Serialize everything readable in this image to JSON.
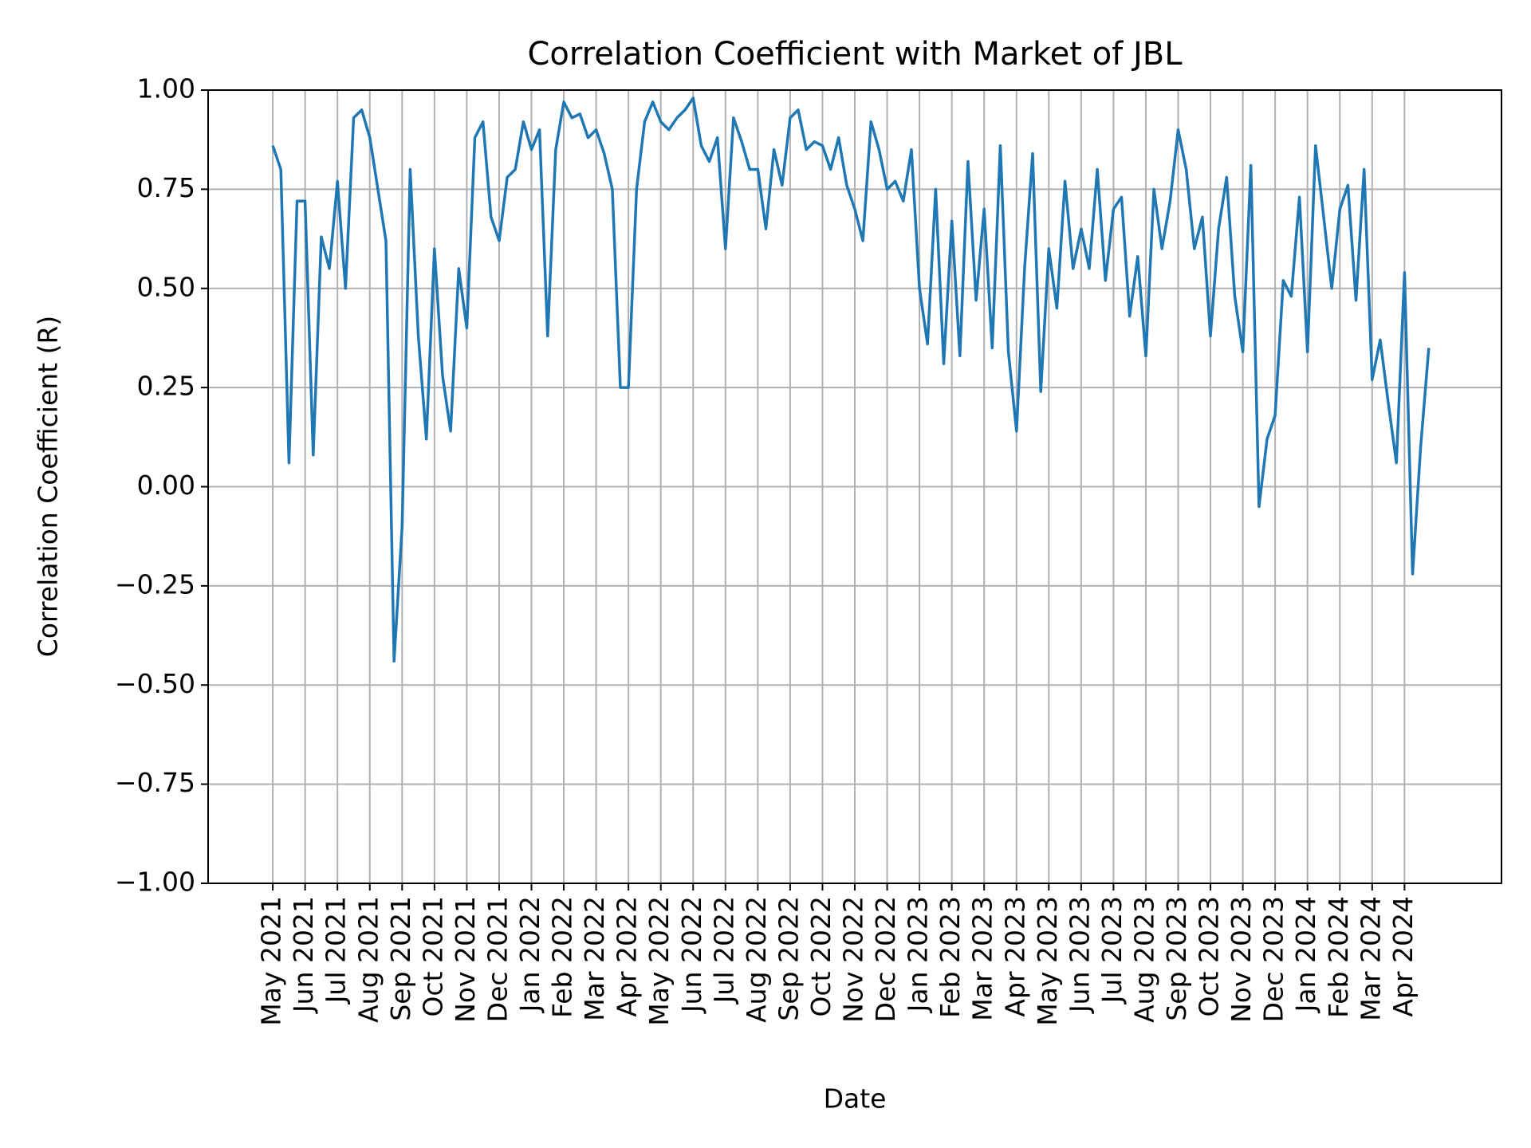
{
  "chart_data": {
    "type": "line",
    "title": "Correlation Coefficient with Market of JBL",
    "xlabel": "Date",
    "ylabel": "Correlation Coefficient (R)",
    "x": [
      "2021-05",
      "2021-05",
      "2021-05",
      "2021-05",
      "2021-06",
      "2021-06",
      "2021-06",
      "2021-06",
      "2021-07",
      "2021-07",
      "2021-07",
      "2021-07",
      "2021-08",
      "2021-08",
      "2021-08",
      "2021-08",
      "2021-09",
      "2021-09",
      "2021-09",
      "2021-09",
      "2021-10",
      "2021-10",
      "2021-10",
      "2021-10",
      "2021-11",
      "2021-11",
      "2021-11",
      "2021-11",
      "2021-12",
      "2021-12",
      "2021-12",
      "2021-12",
      "2022-01",
      "2022-01",
      "2022-01",
      "2022-01",
      "2022-02",
      "2022-02",
      "2022-02",
      "2022-02",
      "2022-03",
      "2022-03",
      "2022-03",
      "2022-03",
      "2022-04",
      "2022-04",
      "2022-04",
      "2022-04",
      "2022-05",
      "2022-05",
      "2022-05",
      "2022-05",
      "2022-06",
      "2022-06",
      "2022-06",
      "2022-06",
      "2022-07",
      "2022-07",
      "2022-07",
      "2022-07",
      "2022-08",
      "2022-08",
      "2022-08",
      "2022-08",
      "2022-09",
      "2022-09",
      "2022-09",
      "2022-09",
      "2022-10",
      "2022-10",
      "2022-10",
      "2022-10",
      "2022-11",
      "2022-11",
      "2022-11",
      "2022-11",
      "2022-12",
      "2022-12",
      "2022-12",
      "2022-12",
      "2023-01",
      "2023-01",
      "2023-01",
      "2023-01",
      "2023-02",
      "2023-02",
      "2023-02",
      "2023-02",
      "2023-03",
      "2023-03",
      "2023-03",
      "2023-03",
      "2023-04",
      "2023-04",
      "2023-04",
      "2023-04",
      "2023-05",
      "2023-05",
      "2023-05",
      "2023-05",
      "2023-06",
      "2023-06",
      "2023-06",
      "2023-06",
      "2023-07",
      "2023-07",
      "2023-07",
      "2023-07",
      "2023-08",
      "2023-08",
      "2023-08",
      "2023-08",
      "2023-09",
      "2023-09",
      "2023-09",
      "2023-09",
      "2023-10",
      "2023-10",
      "2023-10",
      "2023-10",
      "2023-11",
      "2023-11",
      "2023-11",
      "2023-11",
      "2023-12",
      "2023-12",
      "2023-12",
      "2023-12",
      "2024-01",
      "2024-01",
      "2024-01",
      "2024-01",
      "2024-02",
      "2024-02",
      "2024-02",
      "2024-02",
      "2024-03",
      "2024-03",
      "2024-03",
      "2024-03",
      "2024-04",
      "2024-04",
      "2024-04",
      "2024-04"
    ],
    "series": [
      {
        "color": "#1f77b4",
        "values": [
          0.86,
          0.8,
          0.06,
          0.72,
          0.72,
          0.08,
          0.63,
          0.55,
          0.77,
          0.5,
          0.93,
          0.95,
          0.88,
          0.75,
          0.62,
          -0.44,
          -0.1,
          0.8,
          0.38,
          0.12,
          0.6,
          0.28,
          0.14,
          0.55,
          0.4,
          0.88,
          0.92,
          0.68,
          0.62,
          0.78,
          0.8,
          0.92,
          0.85,
          0.9,
          0.38,
          0.85,
          0.97,
          0.93,
          0.94,
          0.88,
          0.9,
          0.84,
          0.75,
          0.25,
          0.25,
          0.75,
          0.92,
          0.97,
          0.92,
          0.9,
          0.93,
          0.95,
          0.98,
          0.86,
          0.82,
          0.88,
          0.6,
          0.93,
          0.87,
          0.8,
          0.8,
          0.65,
          0.85,
          0.76,
          0.93,
          0.95,
          0.85,
          0.87,
          0.86,
          0.8,
          0.88,
          0.76,
          0.7,
          0.62,
          0.92,
          0.85,
          0.75,
          0.77,
          0.72,
          0.85,
          0.5,
          0.36,
          0.75,
          0.31,
          0.67,
          0.33,
          0.82,
          0.47,
          0.7,
          0.35,
          0.86,
          0.34,
          0.14,
          0.55,
          0.84,
          0.24,
          0.6,
          0.45,
          0.77,
          0.55,
          0.65,
          0.55,
          0.8,
          0.52,
          0.7,
          0.73,
          0.43,
          0.58,
          0.33,
          0.75,
          0.6,
          0.72,
          0.9,
          0.8,
          0.6,
          0.68,
          0.38,
          0.65,
          0.78,
          0.48,
          0.34,
          0.81,
          -0.05,
          0.12,
          0.18,
          0.52,
          0.48,
          0.73,
          0.34,
          0.86,
          0.68,
          0.5,
          0.7,
          0.76,
          0.47,
          0.8,
          0.27,
          0.37,
          0.21,
          0.06,
          0.54,
          -0.22,
          0.1,
          0.35
        ]
      }
    ],
    "xlim": [
      "2021-03",
      "2024-07"
    ],
    "xticks": [
      {
        "value": "2021-05",
        "label": "May 2021"
      },
      {
        "value": "2021-06",
        "label": "Jun 2021"
      },
      {
        "value": "2021-07",
        "label": "Jul 2021"
      },
      {
        "value": "2021-08",
        "label": "Aug 2021"
      },
      {
        "value": "2021-09",
        "label": "Sep 2021"
      },
      {
        "value": "2021-10",
        "label": "Oct 2021"
      },
      {
        "value": "2021-11",
        "label": "Nov 2021"
      },
      {
        "value": "2021-12",
        "label": "Dec 2021"
      },
      {
        "value": "2022-01",
        "label": "Jan 2022"
      },
      {
        "value": "2022-02",
        "label": "Feb 2022"
      },
      {
        "value": "2022-03",
        "label": "Mar 2022"
      },
      {
        "value": "2022-04",
        "label": "Apr 2022"
      },
      {
        "value": "2022-05",
        "label": "May 2022"
      },
      {
        "value": "2022-06",
        "label": "Jun 2022"
      },
      {
        "value": "2022-07",
        "label": "Jul 2022"
      },
      {
        "value": "2022-08",
        "label": "Aug 2022"
      },
      {
        "value": "2022-09",
        "label": "Sep 2022"
      },
      {
        "value": "2022-10",
        "label": "Oct 2022"
      },
      {
        "value": "2022-11",
        "label": "Nov 2022"
      },
      {
        "value": "2022-12",
        "label": "Dec 2022"
      },
      {
        "value": "2023-01",
        "label": "Jan 2023"
      },
      {
        "value": "2023-02",
        "label": "Feb 2023"
      },
      {
        "value": "2023-03",
        "label": "Mar 2023"
      },
      {
        "value": "2023-04",
        "label": "Apr 2023"
      },
      {
        "value": "2023-05",
        "label": "May 2023"
      },
      {
        "value": "2023-06",
        "label": "Jun 2023"
      },
      {
        "value": "2023-07",
        "label": "Jul 2023"
      },
      {
        "value": "2023-08",
        "label": "Aug 2023"
      },
      {
        "value": "2023-09",
        "label": "Sep 2023"
      },
      {
        "value": "2023-10",
        "label": "Oct 2023"
      },
      {
        "value": "2023-11",
        "label": "Nov 2023"
      },
      {
        "value": "2023-12",
        "label": "Dec 2023"
      },
      {
        "value": "2024-01",
        "label": "Jan 2024"
      },
      {
        "value": "2024-02",
        "label": "Feb 2024"
      },
      {
        "value": "2024-03",
        "label": "Mar 2024"
      },
      {
        "value": "2024-04",
        "label": "Apr 2024"
      }
    ],
    "ylim": [
      -1,
      1
    ],
    "yticks": [
      {
        "value": -1,
        "label": "−1.00"
      },
      {
        "value": -0.75,
        "label": "−0.75"
      },
      {
        "value": -0.5,
        "label": "−0.50"
      },
      {
        "value": -0.25,
        "label": "−0.25"
      },
      {
        "value": 0,
        "label": "0.00"
      },
      {
        "value": 0.25,
        "label": "0.25"
      },
      {
        "value": 0.5,
        "label": "0.50"
      },
      {
        "value": 0.75,
        "label": "0.75"
      },
      {
        "value": 1,
        "label": "1.00"
      }
    ],
    "grid": true
  }
}
